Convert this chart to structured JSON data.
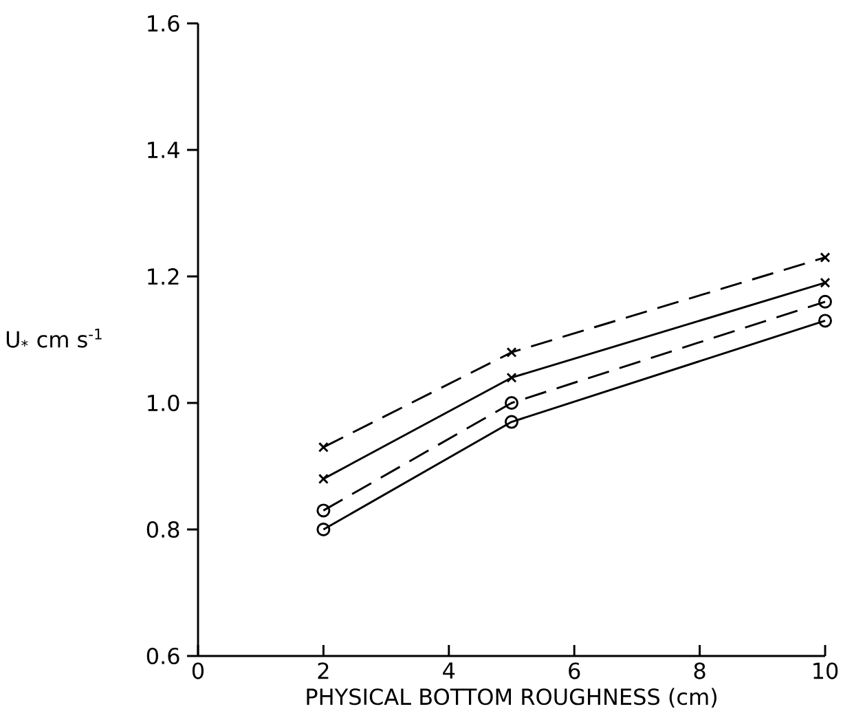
{
  "chart_data": {
    "type": "line",
    "xlabel": "PHYSICAL BOTTOM ROUGHNESS (cm)",
    "ylabel": "U$_{*}$ cm s$^{-1}$",
    "x": [
      2,
      5,
      10
    ],
    "series": [
      {
        "color": "#000000",
        "values": [
          0.93,
          1.08,
          1.23
        ],
        "line_style": "dashed",
        "marker": "cross"
      },
      {
        "color": "#000000",
        "values": [
          0.88,
          1.04,
          1.19
        ],
        "line_style": "solid",
        "marker": "cross"
      },
      {
        "color": "#000000",
        "values": [
          0.83,
          1.0,
          1.16
        ],
        "line_style": "dashed",
        "marker": "circle"
      },
      {
        "color": "#000000",
        "values": [
          0.8,
          0.97,
          1.13
        ],
        "line_style": "solid",
        "marker": "circle"
      }
    ],
    "xlim": [
      0,
      10
    ],
    "ylim": [
      0.6,
      1.6
    ],
    "xticks": [
      0,
      2,
      4,
      6,
      8,
      10
    ],
    "yticks": [
      {
        "value": 0.6,
        "label": "0.6"
      },
      {
        "value": 0.8,
        "label": "0.8"
      },
      {
        "value": 1.0,
        "label": "1.0"
      },
      {
        "value": 1.2,
        "label": "1.2"
      },
      {
        "value": 1.4,
        "label": "1.4"
      },
      {
        "value": 1.6,
        "label": "1.6"
      }
    ],
    "grid": false
  }
}
